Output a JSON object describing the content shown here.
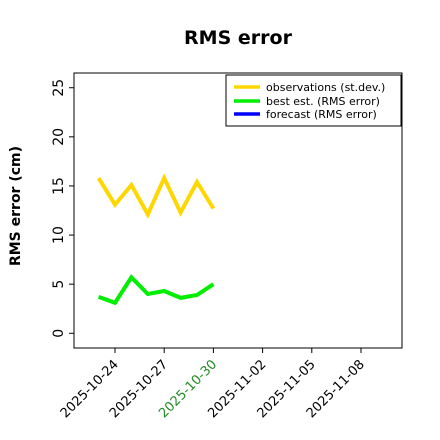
{
  "chart_data": {
    "type": "line",
    "title": "RMS error",
    "ylabel": "RMS error (cm)",
    "xlabel": "",
    "ylim": [
      -1.5,
      26.5
    ],
    "xlim": [
      "2025-10-21T12:00",
      "2025-11-10T12:00"
    ],
    "yticks": [
      "0",
      "5",
      "10",
      "15",
      "20",
      "25"
    ],
    "xticks": [
      {
        "label": "2025-10-24",
        "date": "2025-10-24",
        "color": "#000000"
      },
      {
        "label": "2025-10-27",
        "date": "2025-10-27",
        "color": "#000000"
      },
      {
        "label": "2025-10-30",
        "date": "2025-10-30",
        "color": "#228B22"
      },
      {
        "label": "2025-11-02",
        "date": "2025-11-02",
        "color": "#000000"
      },
      {
        "label": "2025-11-05",
        "date": "2025-11-05",
        "color": "#000000"
      },
      {
        "label": "2025-11-08",
        "date": "2025-11-08",
        "color": "#000000"
      }
    ],
    "grid": false,
    "legend_position": "top-right",
    "series": [
      {
        "name": "observations (st.dev.)",
        "color": "#FFD700",
        "x": [
          "2025-10-23",
          "2025-10-24",
          "2025-10-25",
          "2025-10-26",
          "2025-10-27",
          "2025-10-28",
          "2025-10-29",
          "2025-10-30"
        ],
        "y": [
          15.8,
          13.1,
          15.1,
          12.1,
          15.8,
          12.3,
          15.4,
          12.7
        ]
      },
      {
        "name": "best est. (RMS error)",
        "color": "#00EE00",
        "x": [
          "2025-10-23",
          "2025-10-24",
          "2025-10-25",
          "2025-10-26",
          "2025-10-27",
          "2025-10-28",
          "2025-10-29",
          "2025-10-30"
        ],
        "y": [
          3.7,
          3.1,
          5.7,
          4.0,
          4.3,
          3.6,
          3.9,
          5.0
        ]
      },
      {
        "name": "forecast (RMS error)",
        "color": "#0000FF",
        "x": [],
        "y": []
      }
    ]
  }
}
